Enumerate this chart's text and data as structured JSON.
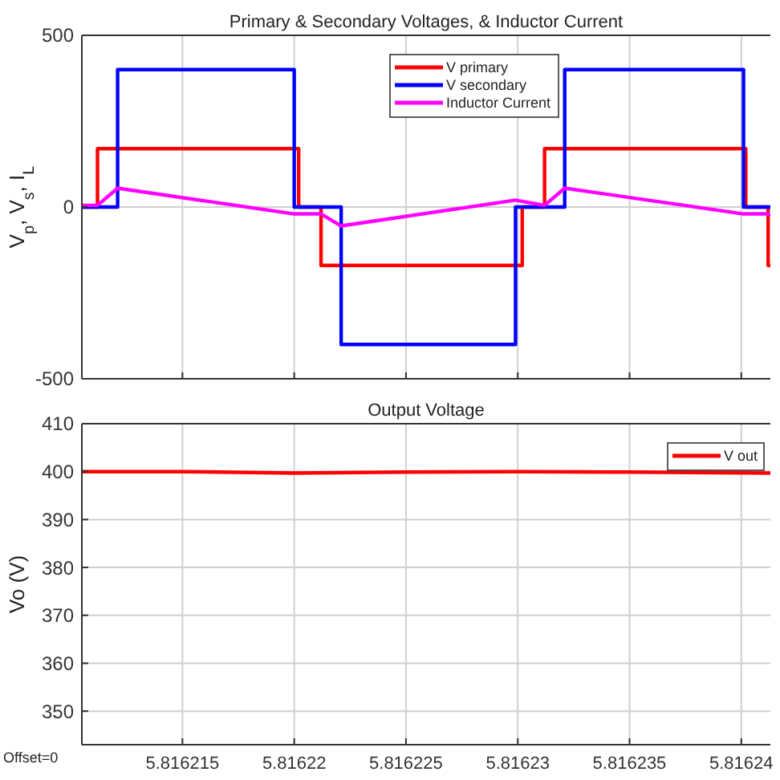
{
  "chart_data": [
    {
      "type": "line",
      "title": "Primary & Secondary Voltages, & Inductor Current",
      "ylabel": "V$_{p}$, V$_{s}$, I$_{L}$",
      "xlim": [
        5.8162105,
        5.8162413
      ],
      "ylim": [
        -500,
        500
      ],
      "xticks": [
        5.816215,
        5.81622,
        5.816225,
        5.81623,
        5.816235,
        5.81624
      ],
      "yticks": [
        -500,
        0,
        500
      ],
      "tick_labels": "y",
      "grid": true,
      "legend": "top right",
      "marker": "none",
      "line_style": "solid",
      "series": [
        {
          "name": "V primary",
          "color": "#ff0000",
          "x": [
            5.8162105,
            5.8162112,
            5.8162112,
            5.8162202,
            5.8162202,
            5.8162212,
            5.8162212,
            5.8162302,
            5.8162302,
            5.8162312,
            5.8162312,
            5.8162402,
            5.8162402,
            5.8162412,
            5.8162412,
            5.8162413
          ],
          "values": [
            0,
            0,
            170,
            170,
            0,
            0,
            -170,
            -170,
            0,
            0,
            170,
            170,
            0,
            0,
            -170,
            -170
          ]
        },
        {
          "name": "V secondary",
          "color": "#0000ff",
          "x": [
            5.8162105,
            5.8162121,
            5.8162121,
            5.81622,
            5.81622,
            5.8162221,
            5.8162221,
            5.8162299,
            5.8162299,
            5.8162321,
            5.8162321,
            5.8162401,
            5.8162401,
            5.8162413
          ],
          "values": [
            0,
            0,
            400,
            400,
            0,
            0,
            -400,
            -400,
            0,
            0,
            400,
            400,
            0,
            0
          ]
        },
        {
          "name": "Inductor Current",
          "color": "#ff00ff",
          "x": [
            5.8162105,
            5.8162112,
            5.8162121,
            5.81622,
            5.8162212,
            5.8162221,
            5.8162299,
            5.8162312,
            5.8162321,
            5.8162401,
            5.8162412,
            5.8162413
          ],
          "values": [
            5,
            5,
            55,
            -20,
            -20,
            -55,
            20,
            5,
            55,
            -20,
            -20,
            -25
          ]
        }
      ]
    },
    {
      "type": "line",
      "title": "Output Voltage",
      "ylabel": "Vo (V)",
      "xlim": [
        5.8162105,
        5.8162413
      ],
      "ylim": [
        343,
        410
      ],
      "xticks": [
        5.816215,
        5.81622,
        5.816225,
        5.81623,
        5.816235,
        5.81624
      ],
      "yticks": [
        350,
        360,
        370,
        380,
        390,
        400,
        410
      ],
      "grid": true,
      "legend": "top right",
      "marker": "none",
      "line_style": "solid",
      "annotations": [
        "Offset=0"
      ],
      "series": [
        {
          "name": "V out",
          "color": "#ff0000",
          "x": [
            5.8162105,
            5.816215,
            5.81622,
            5.816225,
            5.81623,
            5.816235,
            5.8162413
          ],
          "values": [
            400,
            400,
            399.7,
            399.9,
            400,
            399.9,
            399.7
          ]
        }
      ]
    }
  ]
}
